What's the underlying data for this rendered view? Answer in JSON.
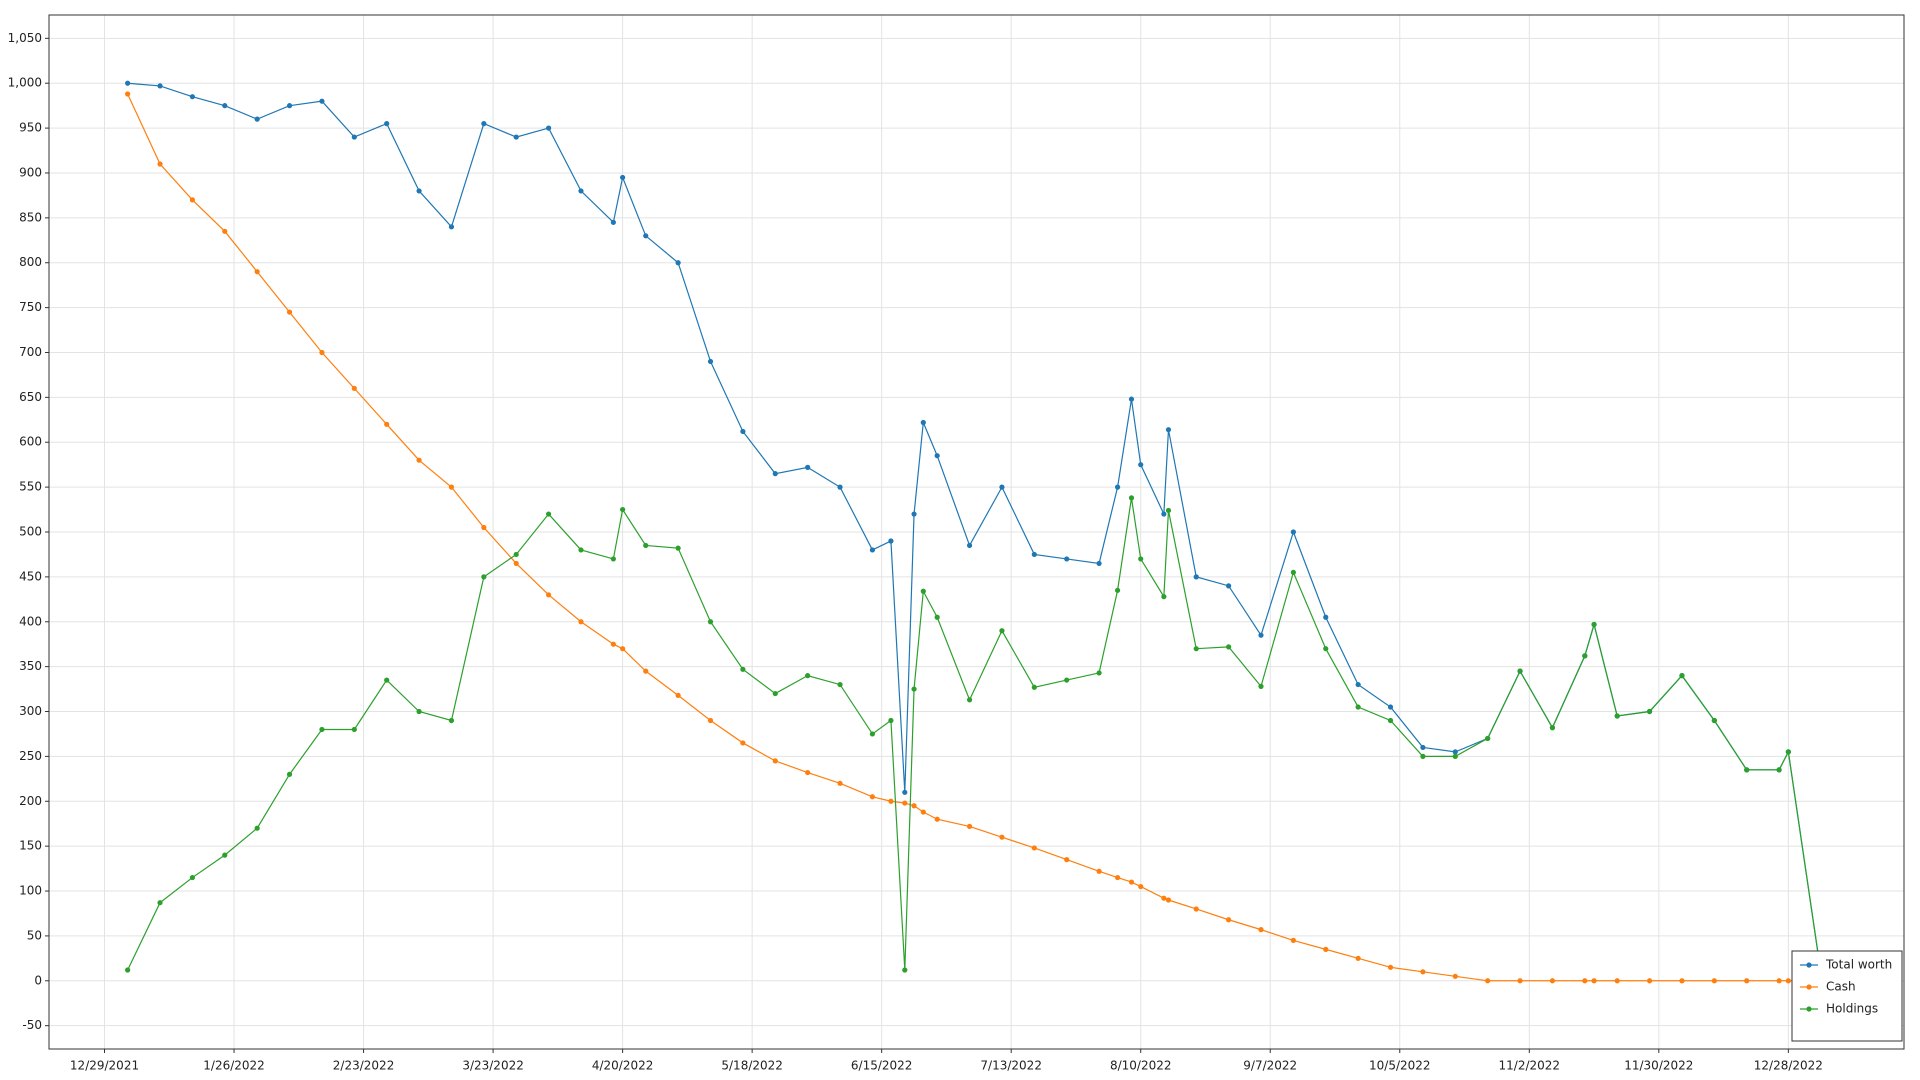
{
  "chart_data": {
    "type": "line",
    "grid": true,
    "legend": "lower right",
    "markers": true,
    "x": [
      "2022-01-03",
      "2022-01-10",
      "2022-01-17",
      "2022-01-24",
      "2022-01-31",
      "2022-02-07",
      "2022-02-14",
      "2022-02-21",
      "2022-02-28",
      "2022-03-07",
      "2022-03-14",
      "2022-03-21",
      "2022-03-28",
      "2022-04-04",
      "2022-04-11",
      "2022-04-18",
      "2022-04-20",
      "2022-04-25",
      "2022-05-02",
      "2022-05-09",
      "2022-05-16",
      "2022-05-23",
      "2022-05-30",
      "2022-06-06",
      "2022-06-13",
      "2022-06-17",
      "2022-06-20",
      "2022-06-22",
      "2022-06-24",
      "2022-06-27",
      "2022-07-04",
      "2022-07-11",
      "2022-07-18",
      "2022-07-25",
      "2022-08-01",
      "2022-08-05",
      "2022-08-08",
      "2022-08-10",
      "2022-08-15",
      "2022-08-16",
      "2022-08-22",
      "2022-08-29",
      "2022-09-05",
      "2022-09-12",
      "2022-09-19",
      "2022-09-26",
      "2022-10-03",
      "2022-10-10",
      "2022-10-17",
      "2022-10-24",
      "2022-10-31",
      "2022-11-07",
      "2022-11-14",
      "2022-11-16",
      "2022-11-21",
      "2022-11-28",
      "2022-12-05",
      "2022-12-12",
      "2022-12-19",
      "2022-12-26",
      "2022-12-28",
      "2023-01-04"
    ],
    "series": [
      {
        "name": "Total worth",
        "color": "#1f77b4",
        "values": [
          1000,
          997,
          985,
          975,
          960,
          975,
          980,
          940,
          955,
          880,
          840,
          955,
          940,
          950,
          880,
          845,
          895,
          830,
          800,
          690,
          612,
          565,
          572,
          550,
          480,
          490,
          210,
          520,
          622,
          585,
          485,
          550,
          475,
          470,
          465,
          550,
          648,
          575,
          520,
          614,
          450,
          440,
          385,
          500,
          405,
          330,
          305,
          260,
          255,
          270,
          345,
          282,
          362,
          397,
          295,
          300,
          340,
          290,
          235,
          235,
          255,
          10
        ]
      },
      {
        "name": "Cash",
        "color": "#ff7f0e",
        "values": [
          988,
          910,
          870,
          835,
          790,
          745,
          700,
          660,
          620,
          580,
          550,
          505,
          465,
          430,
          400,
          375,
          370,
          345,
          318,
          290,
          265,
          245,
          232,
          220,
          205,
          200,
          198,
          195,
          188,
          180,
          172,
          160,
          148,
          135,
          122,
          115,
          110,
          105,
          92,
          90,
          80,
          68,
          57,
          45,
          35,
          25,
          15,
          10,
          5,
          0,
          0,
          0,
          0,
          0,
          0,
          0,
          0,
          0,
          0,
          0,
          0,
          0
        ]
      },
      {
        "name": "Holdings",
        "color": "#2ca02c",
        "values": [
          12,
          87,
          115,
          140,
          170,
          230,
          280,
          280,
          335,
          300,
          290,
          450,
          475,
          520,
          480,
          470,
          525,
          485,
          482,
          400,
          347,
          320,
          340,
          330,
          275,
          290,
          12,
          325,
          434,
          405,
          313,
          390,
          327,
          335,
          343,
          435,
          538,
          470,
          428,
          524,
          370,
          372,
          328,
          455,
          370,
          305,
          290,
          250,
          250,
          270,
          345,
          282,
          362,
          397,
          295,
          300,
          340,
          290,
          235,
          235,
          255,
          10
        ]
      }
    ],
    "xlim": [
      "2021-12-17",
      "2023-01-22"
    ],
    "xticks": [
      {
        "value": "2021-12-29",
        "label": "12/29/2021"
      },
      {
        "value": "2022-01-26",
        "label": "1/26/2022"
      },
      {
        "value": "2022-02-23",
        "label": "2/23/2022"
      },
      {
        "value": "2022-03-23",
        "label": "3/23/2022"
      },
      {
        "value": "2022-04-20",
        "label": "4/20/2022"
      },
      {
        "value": "2022-05-18",
        "label": "5/18/2022"
      },
      {
        "value": "2022-06-15",
        "label": "6/15/2022"
      },
      {
        "value": "2022-07-13",
        "label": "7/13/2022"
      },
      {
        "value": "2022-08-10",
        "label": "8/10/2022"
      },
      {
        "value": "2022-09-07",
        "label": "9/7/2022"
      },
      {
        "value": "2022-10-05",
        "label": "10/5/2022"
      },
      {
        "value": "2022-11-02",
        "label": "11/2/2022"
      },
      {
        "value": "2022-11-30",
        "label": "11/30/2022"
      },
      {
        "value": "2022-12-28",
        "label": "12/28/2022"
      }
    ],
    "ylim": [
      -76,
      1076
    ],
    "yticks": [
      -50,
      0,
      50,
      100,
      150,
      200,
      250,
      300,
      350,
      400,
      450,
      500,
      550,
      600,
      650,
      700,
      750,
      800,
      850,
      900,
      950,
      {
        "value": 1000,
        "label": "1,000"
      },
      {
        "value": 1050,
        "label": "1,050"
      }
    ]
  }
}
